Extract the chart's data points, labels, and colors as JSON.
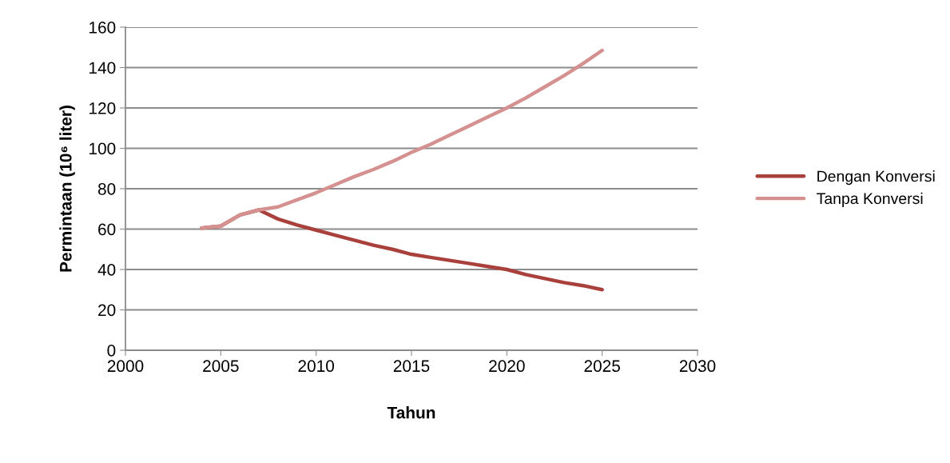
{
  "chart_data": {
    "type": "line",
    "xlabel": "Tahun",
    "ylabel": "Permintaan (10⁶ liter)",
    "x": [
      2004,
      2005,
      2006,
      2007,
      2008,
      2009,
      2010,
      2011,
      2012,
      2013,
      2014,
      2015,
      2016,
      2017,
      2018,
      2019,
      2020,
      2021,
      2022,
      2023,
      2024,
      2025
    ],
    "series": [
      {
        "name": "Dengan Konversi",
        "color": "#a9403b",
        "values": [
          60.5,
          61.5,
          67,
          69.5,
          65,
          62,
          59.5,
          57,
          54.5,
          52,
          50,
          47.5,
          46,
          44.5,
          43,
          41.5,
          40,
          37.5,
          35.5,
          33.5,
          32,
          30
        ]
      },
      {
        "name": "Tanpa Konversi",
        "color": "#d49190",
        "values": [
          60.5,
          61.5,
          67,
          69.5,
          71,
          74.5,
          78,
          82,
          86,
          89.5,
          93.5,
          98,
          102,
          106.5,
          111,
          115.5,
          120,
          125,
          130.5,
          136,
          142,
          148.5
        ]
      }
    ],
    "xlim": [
      2000,
      2030
    ],
    "xticks": [
      2000,
      2005,
      2010,
      2015,
      2020,
      2025,
      2030
    ],
    "ylim": [
      0,
      160
    ],
    "yticks": [
      0,
      20,
      40,
      60,
      80,
      100,
      120,
      140,
      160
    ],
    "grid": "y",
    "legend": "right",
    "marker": "none",
    "line_style": "solid"
  }
}
